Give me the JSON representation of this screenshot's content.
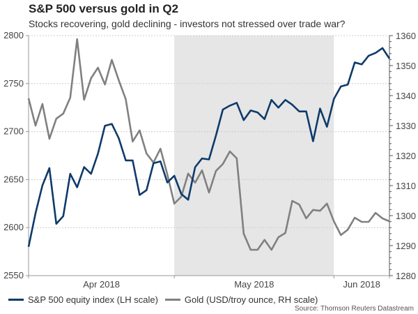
{
  "chart_data": {
    "type": "line",
    "title": "S&P 500 versus gold in Q2",
    "subtitle": "Stocks recovering, gold declining - investors not stressed over trade war?",
    "xlabel": "",
    "x_tick_labels": [
      "Apr 2018",
      "May 2018",
      "Jun 2018"
    ],
    "highlight_period": "May 2018",
    "grid": true,
    "left_axis": {
      "label": "S&P 500 (LH scale)",
      "ylim": [
        2550,
        2800
      ],
      "ticks": [
        "2550",
        "2600",
        "2650",
        "2700",
        "2750",
        "2800"
      ]
    },
    "right_axis": {
      "label": "Gold (RH scale)",
      "ylim": [
        1280,
        1360
      ],
      "ticks": [
        "1280",
        "1290",
        "1300",
        "1310",
        "1320",
        "1330",
        "1340",
        "1350",
        "1360"
      ]
    },
    "series": [
      {
        "name": "S&P 500 equity index (LH scale)",
        "axis": "left",
        "color": "#0e3a6b",
        "values": [
          2580,
          2615,
          2644,
          2662,
          2604,
          2612,
          2656,
          2642,
          2663,
          2656,
          2677,
          2706,
          2708,
          2693,
          2670,
          2670,
          2634,
          2639,
          2667,
          2669,
          2647,
          2654,
          2635,
          2629,
          2663,
          2672,
          2671,
          2696,
          2723,
          2727,
          2730,
          2712,
          2722,
          2720,
          2713,
          2733,
          2725,
          2733,
          2728,
          2721,
          2721,
          2690,
          2724,
          2705,
          2734,
          2747,
          2749,
          2772,
          2770,
          2779,
          2782,
          2787,
          2776
        ]
      },
      {
        "name": "Gold (USD/troy ounce, RH scale)",
        "axis": "right",
        "color": "#808080",
        "values": [
          1339.1,
          1330.0,
          1337.2,
          1325.6,
          1332.3,
          1334.0,
          1339.3,
          1358.8,
          1338.6,
          1345.8,
          1349.3,
          1343.7,
          1351.9,
          1345.1,
          1338.8,
          1324.7,
          1328.4,
          1320.7,
          1317.7,
          1322.3,
          1313.7,
          1304.0,
          1306.3,
          1314.0,
          1311.0,
          1315.1,
          1307.7,
          1314.9,
          1317.2,
          1321.4,
          1319.1,
          1294.0,
          1288.6,
          1288.6,
          1291.9,
          1288.6,
          1292.8,
          1294.2,
          1304.9,
          1303.7,
          1299.1,
          1301.9,
          1301.6,
          1304.0,
          1298.1,
          1293.5,
          1295.3,
          1299.3,
          1297.9,
          1297.9,
          1300.9,
          1299.1,
          1298.1
        ]
      }
    ],
    "legend": "bottom-left",
    "source": "Source: Thomson Reuters Datastream"
  }
}
